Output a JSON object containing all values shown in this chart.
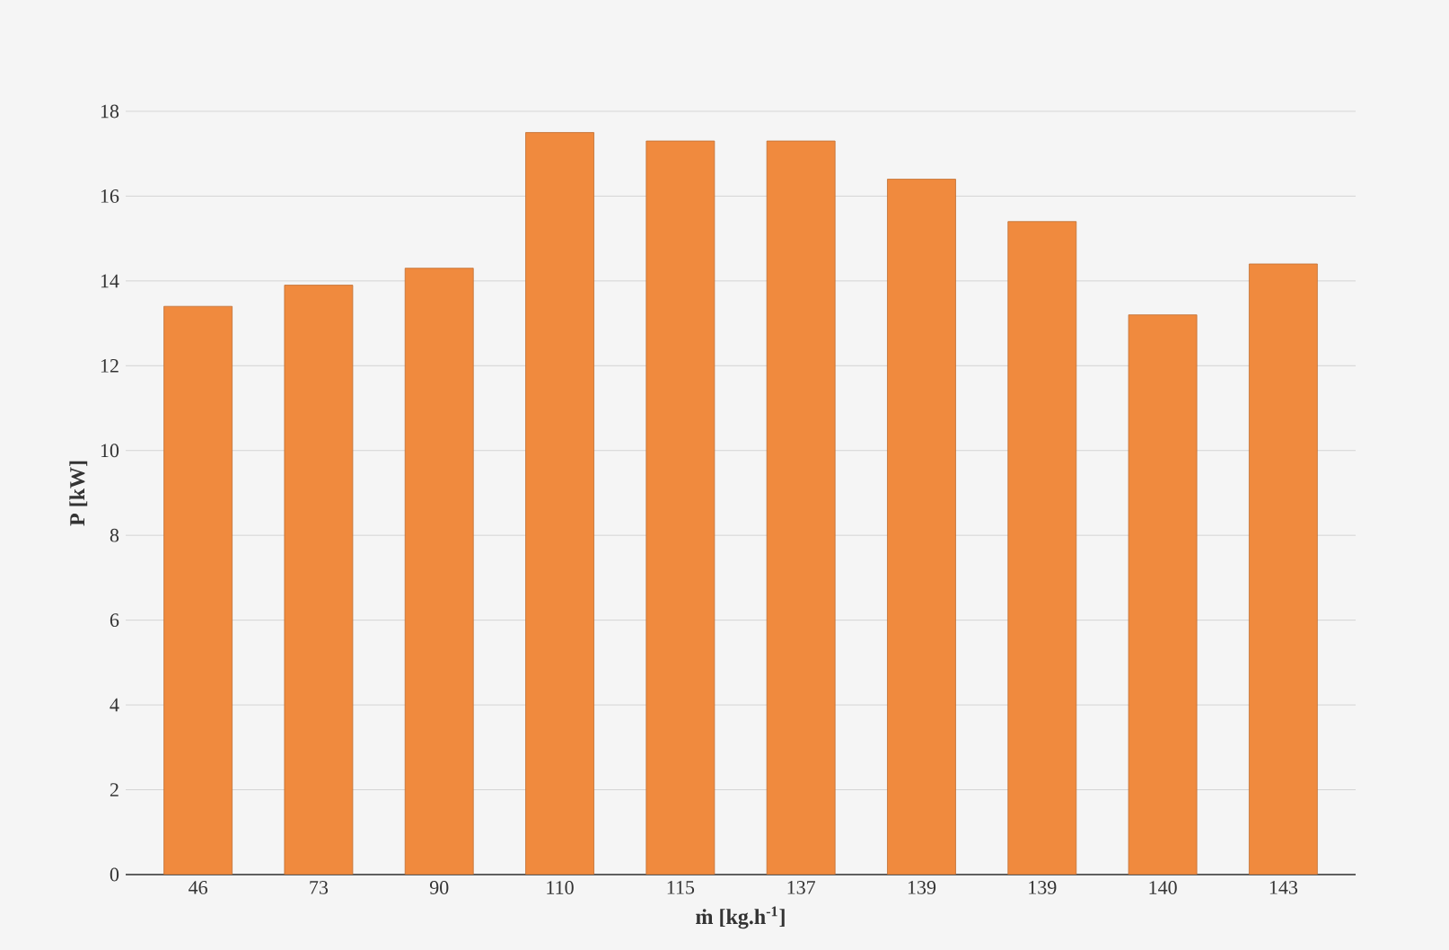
{
  "chart_data": {
    "type": "bar",
    "xlabel": "ṁ [kg.h$^{-1}$]",
    "ylabel": "P [kW]",
    "categories": [
      "46",
      "73",
      "90",
      "110",
      "115",
      "137",
      "139",
      "139",
      "140",
      "143"
    ],
    "values": [
      13.4,
      13.9,
      14.3,
      17.5,
      17.3,
      17.3,
      16.4,
      15.4,
      13.2,
      14.4
    ],
    "color": "#f08a3e",
    "ylim": [
      0,
      18
    ],
    "yticks": [
      0,
      2,
      4,
      6,
      8,
      10,
      12,
      14,
      16,
      18
    ],
    "grid": "y"
  }
}
